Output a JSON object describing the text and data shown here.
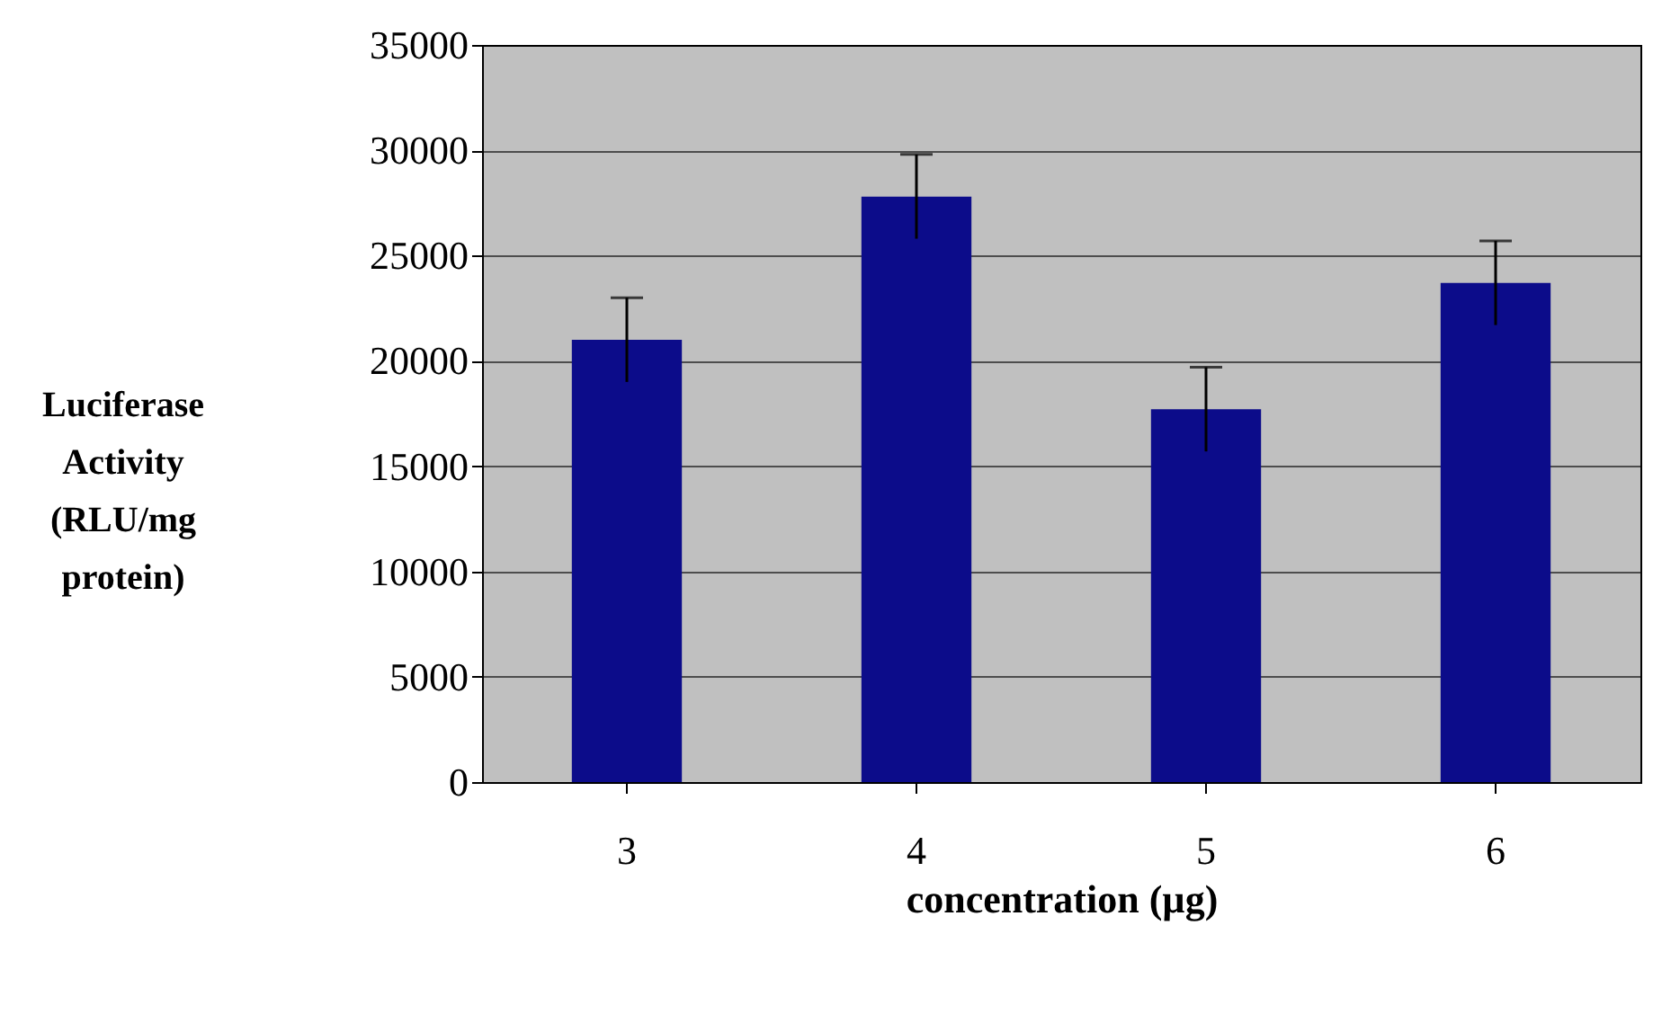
{
  "chart_data": {
    "type": "bar",
    "xlabel": "concentration (µg)",
    "ylabel": "Luciferase\nActivity\n(RLU/mg\nprotein)",
    "categories": [
      "3",
      "4",
      "5",
      "6"
    ],
    "values": [
      21000,
      27800,
      17700,
      23700
    ],
    "errors": [
      2000,
      2000,
      2000,
      2000
    ],
    "color": "#0c0c8a",
    "ylim": [
      0,
      35000
    ],
    "yticks": [
      0,
      5000,
      10000,
      15000,
      20000,
      25000,
      30000,
      35000
    ],
    "grid": "y"
  }
}
